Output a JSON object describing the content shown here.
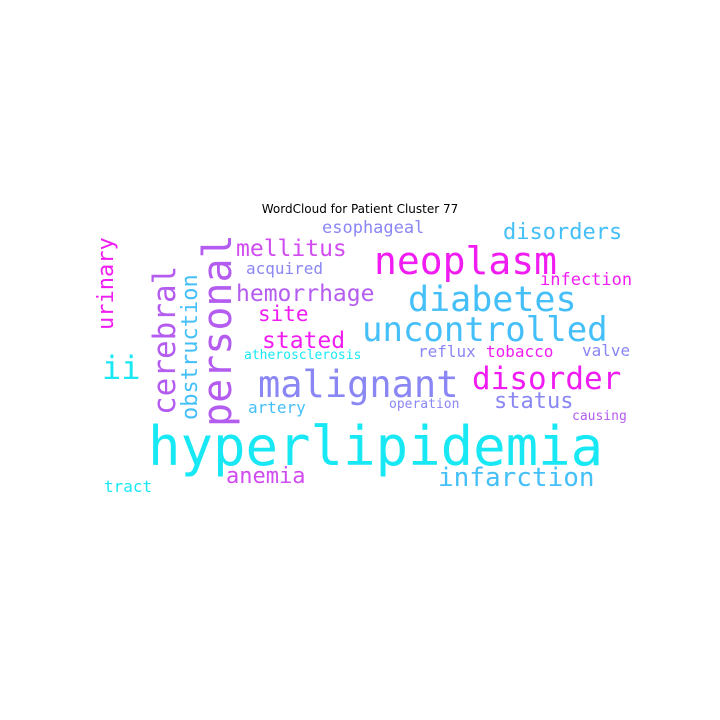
{
  "title": "WordCloud for Patient Cluster 77",
  "colors": {
    "cyan": "#18e8f4",
    "sky": "#44bff8",
    "periwinkle": "#8a86f4",
    "violet": "#b45cf0",
    "magenta": "#f01cf2"
  },
  "words": [
    {
      "text": "hyperlipidemia",
      "color": "#18e8f4"
    },
    {
      "text": "malignant",
      "color": "#8a86f4"
    },
    {
      "text": "neoplasm",
      "color": "#f01cf2"
    },
    {
      "text": "personal",
      "color": "#b45cf0"
    },
    {
      "text": "diabetes",
      "color": "#44bff8"
    },
    {
      "text": "uncontrolled",
      "color": "#44bff8"
    },
    {
      "text": "disorder",
      "color": "#f01cf2"
    },
    {
      "text": "cerebral",
      "color": "#b45cf0"
    },
    {
      "text": "infarction",
      "color": "#44bff8"
    },
    {
      "text": "hemorrhage",
      "color": "#b45cf0"
    },
    {
      "text": "mellitus",
      "color": "#d04cf0"
    },
    {
      "text": "stated",
      "color": "#f01cf2"
    },
    {
      "text": "disorders",
      "color": "#44bff8"
    },
    {
      "text": "anemia",
      "color": "#d04cf0"
    },
    {
      "text": "status",
      "color": "#8a86f4"
    },
    {
      "text": "urinary",
      "color": "#f01cf2"
    },
    {
      "text": "obstruction",
      "color": "#44bff8"
    },
    {
      "text": "ii",
      "color": "#18e8f4"
    },
    {
      "text": "site",
      "color": "#f01cf2"
    },
    {
      "text": "esophageal",
      "color": "#8a86f4"
    },
    {
      "text": "infection",
      "color": "#f01cf2"
    },
    {
      "text": "acquired",
      "color": "#8a86f4"
    },
    {
      "text": "artery",
      "color": "#44bff8"
    },
    {
      "text": "reflux",
      "color": "#8a86f4"
    },
    {
      "text": "tobacco",
      "color": "#f01cf2"
    },
    {
      "text": "valve",
      "color": "#8a86f4"
    },
    {
      "text": "tract",
      "color": "#18e8f4"
    },
    {
      "text": "atherosclerosis",
      "color": "#18e8f4"
    },
    {
      "text": "operation",
      "color": "#8a86f4"
    },
    {
      "text": "causing",
      "color": "#b45cf0"
    }
  ]
}
